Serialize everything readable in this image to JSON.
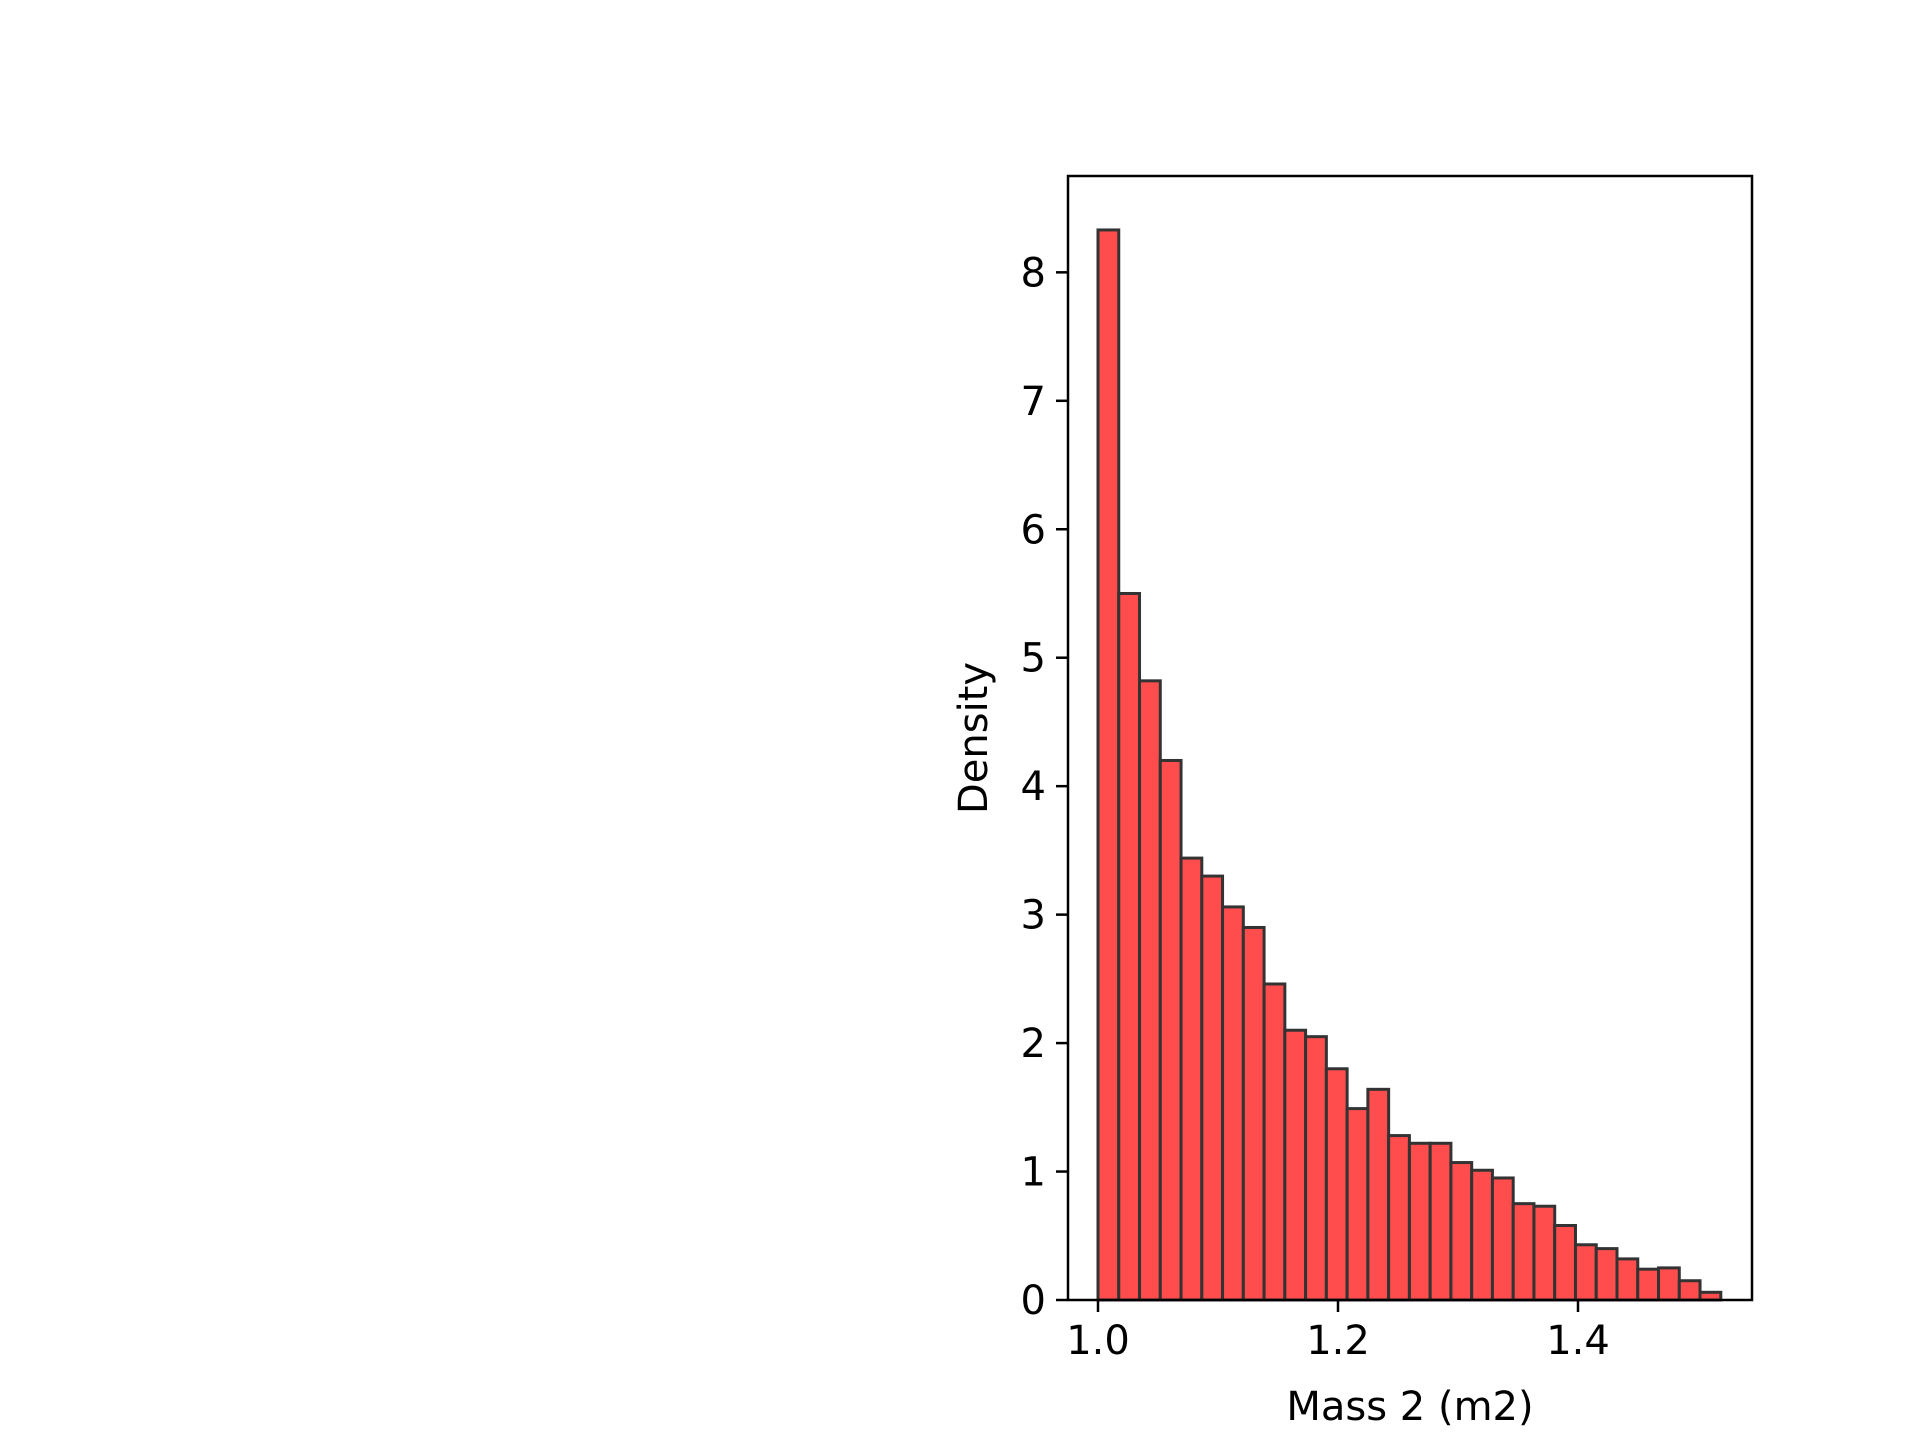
{
  "chart_data": {
    "type": "bar",
    "title": "",
    "xlabel": "Mass 2 (m2)",
    "ylabel": "Density",
    "bar_color": "#ff4d4d",
    "edge_color": "#333333",
    "grid": false,
    "xlim": [
      0.975,
      1.545
    ],
    "ylim": [
      0,
      8.75
    ],
    "xticks": [
      "1.0",
      "1.2",
      "1.4"
    ],
    "yticks": [
      "0",
      "1",
      "2",
      "3",
      "4",
      "5",
      "6",
      "7",
      "8"
    ],
    "bin_start": 1.0,
    "bin_width": 0.0173,
    "values": [
      8.33,
      5.5,
      4.82,
      4.2,
      3.44,
      3.3,
      3.06,
      2.9,
      2.46,
      2.1,
      2.05,
      1.8,
      1.49,
      1.64,
      1.28,
      1.22,
      1.22,
      1.07,
      1.01,
      0.95,
      0.75,
      0.73,
      0.58,
      0.43,
      0.4,
      0.32,
      0.24,
      0.25,
      0.15,
      0.06
    ]
  }
}
